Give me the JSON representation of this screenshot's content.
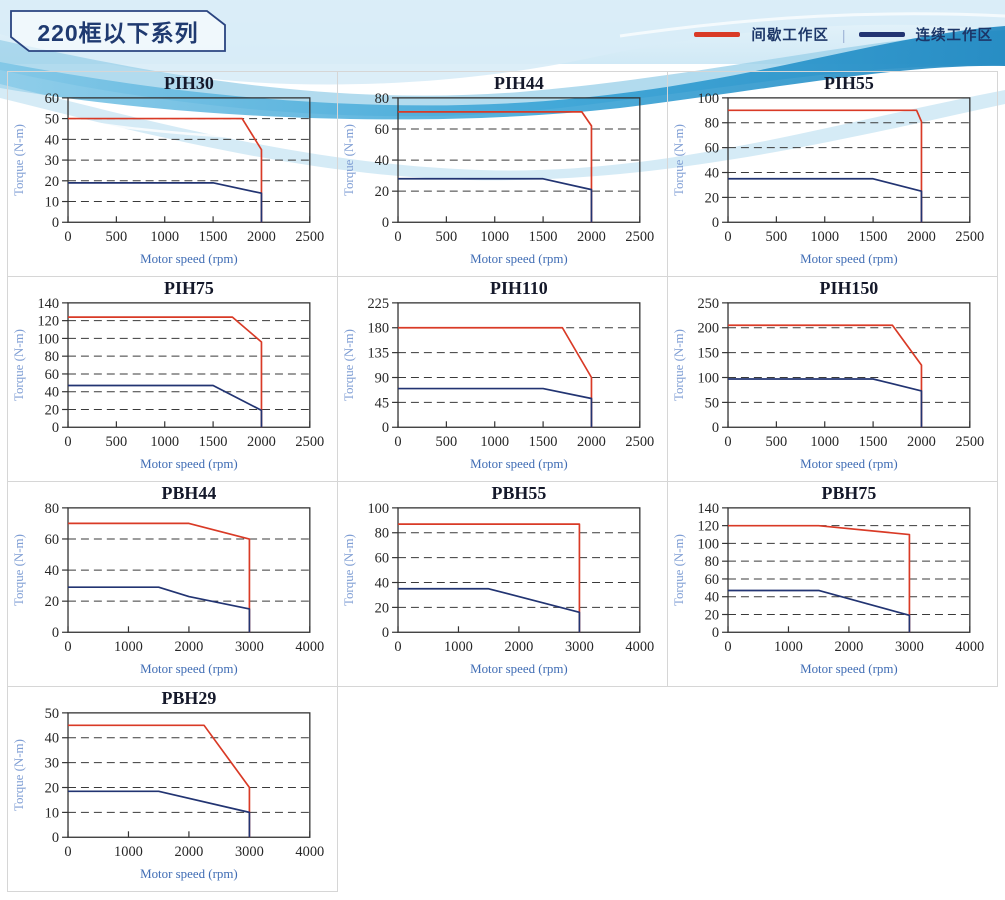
{
  "header": {
    "series_title": "220框以下系列",
    "legend": {
      "items": [
        {
          "label": "间歇工作区",
          "color": "#d93a26"
        },
        {
          "label": "连续工作区",
          "color": "#223472"
        }
      ],
      "separator": "|"
    }
  },
  "chart_data": [
    {
      "type": "line",
      "title": "PIH30",
      "xlabel": "Motor speed (rpm)",
      "ylabel": "Torque (N-m)",
      "xlim": [
        0,
        2500
      ],
      "ylim": [
        0,
        60
      ],
      "xticks": [
        0,
        500,
        1000,
        1500,
        2000,
        2500
      ],
      "yticks": [
        0,
        10,
        20,
        30,
        40,
        50,
        60
      ],
      "grid": "dashed-horizontal",
      "legend_position": "none",
      "series": [
        {
          "name": "间歇工作区",
          "color": "#d93a26",
          "points": [
            [
              0,
              50
            ],
            [
              1800,
              50
            ],
            [
              2000,
              35
            ],
            [
              2000,
              0
            ]
          ]
        },
        {
          "name": "连续工作区",
          "color": "#223472",
          "points": [
            [
              0,
              19
            ],
            [
              1500,
              19
            ],
            [
              2000,
              14
            ],
            [
              2000,
              0
            ]
          ]
        }
      ]
    },
    {
      "type": "line",
      "title": "PIH44",
      "xlabel": "Motor speed (rpm)",
      "ylabel": "Torque (N-m)",
      "xlim": [
        0,
        2500
      ],
      "ylim": [
        0,
        80
      ],
      "xticks": [
        0,
        500,
        1000,
        1500,
        2000,
        2500
      ],
      "yticks": [
        0,
        20,
        40,
        60,
        80
      ],
      "grid": "dashed-horizontal",
      "legend_position": "none",
      "series": [
        {
          "name": "间歇工作区",
          "color": "#d93a26",
          "points": [
            [
              0,
              71
            ],
            [
              1900,
              71
            ],
            [
              2000,
              62
            ],
            [
              2000,
              0
            ]
          ]
        },
        {
          "name": "连续工作区",
          "color": "#223472",
          "points": [
            [
              0,
              28
            ],
            [
              1500,
              28
            ],
            [
              2000,
              21
            ],
            [
              2000,
              0
            ]
          ]
        }
      ]
    },
    {
      "type": "line",
      "title": "PIH55",
      "xlabel": "Motor speed (rpm)",
      "ylabel": "Torque (N-m)",
      "xlim": [
        0,
        2500
      ],
      "ylim": [
        0,
        100
      ],
      "xticks": [
        0,
        500,
        1000,
        1500,
        2000,
        2500
      ],
      "yticks": [
        0,
        20,
        40,
        60,
        80,
        100
      ],
      "grid": "dashed-horizontal",
      "legend_position": "none",
      "series": [
        {
          "name": "间歇工作区",
          "color": "#d93a26",
          "points": [
            [
              0,
              90
            ],
            [
              1950,
              90
            ],
            [
              2000,
              81
            ],
            [
              2000,
              0
            ]
          ]
        },
        {
          "name": "连续工作区",
          "color": "#223472",
          "points": [
            [
              0,
              35
            ],
            [
              1500,
              35
            ],
            [
              2000,
              25
            ],
            [
              2000,
              0
            ]
          ]
        }
      ]
    },
    {
      "type": "line",
      "title": "PIH75",
      "xlabel": "Motor speed (rpm)",
      "ylabel": "Torque (N-m)",
      "xlim": [
        0,
        2500
      ],
      "ylim": [
        0,
        140
      ],
      "xticks": [
        0,
        500,
        1000,
        1500,
        2000,
        2500
      ],
      "yticks": [
        0,
        20,
        40,
        60,
        80,
        100,
        120,
        140
      ],
      "grid": "dashed-horizontal",
      "legend_position": "none",
      "series": [
        {
          "name": "间歇工作区",
          "color": "#d93a26",
          "points": [
            [
              0,
              124
            ],
            [
              1700,
              124
            ],
            [
              2000,
              96
            ],
            [
              2000,
              0
            ]
          ]
        },
        {
          "name": "连续工作区",
          "color": "#223472",
          "points": [
            [
              0,
              47
            ],
            [
              1500,
              47
            ],
            [
              2000,
              19
            ],
            [
              2000,
              0
            ]
          ]
        }
      ]
    },
    {
      "type": "line",
      "title": "PIH110",
      "xlabel": "Motor speed (rpm)",
      "ylabel": "Torque (N-m)",
      "xlim": [
        0,
        2500
      ],
      "ylim": [
        0,
        225
      ],
      "xticks": [
        0,
        500,
        1000,
        1500,
        2000,
        2500
      ],
      "yticks": [
        0,
        45,
        90,
        135,
        180,
        225
      ],
      "grid": "dashed-horizontal",
      "legend_position": "none",
      "series": [
        {
          "name": "间歇工作区",
          "color": "#d93a26",
          "points": [
            [
              0,
              180
            ],
            [
              1700,
              180
            ],
            [
              2000,
              90
            ],
            [
              2000,
              0
            ]
          ]
        },
        {
          "name": "连续工作区",
          "color": "#223472",
          "points": [
            [
              0,
              70
            ],
            [
              1500,
              70
            ],
            [
              2000,
              52
            ],
            [
              2000,
              0
            ]
          ]
        }
      ]
    },
    {
      "type": "line",
      "title": "PIH150",
      "xlabel": "Motor speed (rpm)",
      "ylabel": "Torque (N-m)",
      "xlim": [
        0,
        2500
      ],
      "ylim": [
        0,
        250
      ],
      "xticks": [
        0,
        500,
        1000,
        1500,
        2000,
        2500
      ],
      "yticks": [
        0,
        50,
        100,
        150,
        200,
        250
      ],
      "grid": "dashed-horizontal",
      "legend_position": "none",
      "series": [
        {
          "name": "间歇工作区",
          "color": "#d93a26",
          "points": [
            [
              0,
              205
            ],
            [
              1700,
              205
            ],
            [
              2000,
              125
            ],
            [
              2000,
              0
            ]
          ]
        },
        {
          "name": "连续工作区",
          "color": "#223472",
          "points": [
            [
              0,
              97
            ],
            [
              1500,
              97
            ],
            [
              2000,
              73
            ],
            [
              2000,
              0
            ]
          ]
        }
      ]
    },
    {
      "type": "line",
      "title": "PBH44",
      "xlabel": "Motor speed (rpm)",
      "ylabel": "Torque (N-m)",
      "xlim": [
        0,
        4000
      ],
      "ylim": [
        0,
        80
      ],
      "xticks": [
        0,
        1000,
        2000,
        3000,
        4000
      ],
      "yticks": [
        0,
        20,
        40,
        60,
        80
      ],
      "grid": "dashed-horizontal",
      "legend_position": "none",
      "series": [
        {
          "name": "间歇工作区",
          "color": "#d93a26",
          "points": [
            [
              0,
              70
            ],
            [
              2000,
              70
            ],
            [
              3000,
              60
            ],
            [
              3000,
              0
            ]
          ]
        },
        {
          "name": "连续工作区",
          "color": "#223472",
          "points": [
            [
              0,
              29
            ],
            [
              1500,
              29
            ],
            [
              2000,
              23
            ],
            [
              3000,
              15
            ],
            [
              3000,
              0
            ]
          ]
        }
      ]
    },
    {
      "type": "line",
      "title": "PBH55",
      "xlabel": "Motor speed (rpm)",
      "ylabel": "Torque (N-m)",
      "xlim": [
        0,
        4000
      ],
      "ylim": [
        0,
        100
      ],
      "xticks": [
        0,
        1000,
        2000,
        3000,
        4000
      ],
      "yticks": [
        0,
        20,
        40,
        60,
        80,
        100
      ],
      "grid": "dashed-horizontal",
      "legend_position": "none",
      "series": [
        {
          "name": "间歇工作区",
          "color": "#d93a26",
          "points": [
            [
              0,
              87
            ],
            [
              3000,
              87
            ],
            [
              3000,
              0
            ]
          ]
        },
        {
          "name": "连续工作区",
          "color": "#223472",
          "points": [
            [
              0,
              35
            ],
            [
              1500,
              35
            ],
            [
              3000,
              16
            ],
            [
              3000,
              0
            ]
          ]
        }
      ]
    },
    {
      "type": "line",
      "title": "PBH75",
      "xlabel": "Motor speed (rpm)",
      "ylabel": "Torque (N-m)",
      "xlim": [
        0,
        4000
      ],
      "ylim": [
        0,
        140
      ],
      "xticks": [
        0,
        1000,
        2000,
        3000,
        4000
      ],
      "yticks": [
        0,
        20,
        40,
        60,
        80,
        100,
        120,
        140
      ],
      "grid": "dashed-horizontal",
      "legend_position": "none",
      "series": [
        {
          "name": "间歇工作区",
          "color": "#d93a26",
          "points": [
            [
              0,
              120
            ],
            [
              1500,
              120
            ],
            [
              3000,
              110
            ],
            [
              3000,
              0
            ]
          ]
        },
        {
          "name": "连续工作区",
          "color": "#223472",
          "points": [
            [
              0,
              47
            ],
            [
              1500,
              47
            ],
            [
              3000,
              19
            ],
            [
              3000,
              0
            ]
          ]
        }
      ]
    },
    {
      "type": "line",
      "title": "PBH29",
      "xlabel": "Motor speed (rpm)",
      "ylabel": "Torque (N-m)",
      "xlim": [
        0,
        4000
      ],
      "ylim": [
        0,
        50
      ],
      "xticks": [
        0,
        1000,
        2000,
        3000,
        4000
      ],
      "yticks": [
        0,
        10,
        20,
        30,
        40,
        50
      ],
      "grid": "dashed-horizontal",
      "legend_position": "none",
      "series": [
        {
          "name": "间歇工作区",
          "color": "#d93a26",
          "points": [
            [
              0,
              45
            ],
            [
              2250,
              45
            ],
            [
              3000,
              20
            ],
            [
              3000,
              0
            ]
          ]
        },
        {
          "name": "连续工作区",
          "color": "#223472",
          "points": [
            [
              0,
              18.5
            ],
            [
              1500,
              18.5
            ],
            [
              3000,
              10
            ],
            [
              3000,
              0
            ]
          ]
        }
      ]
    }
  ]
}
